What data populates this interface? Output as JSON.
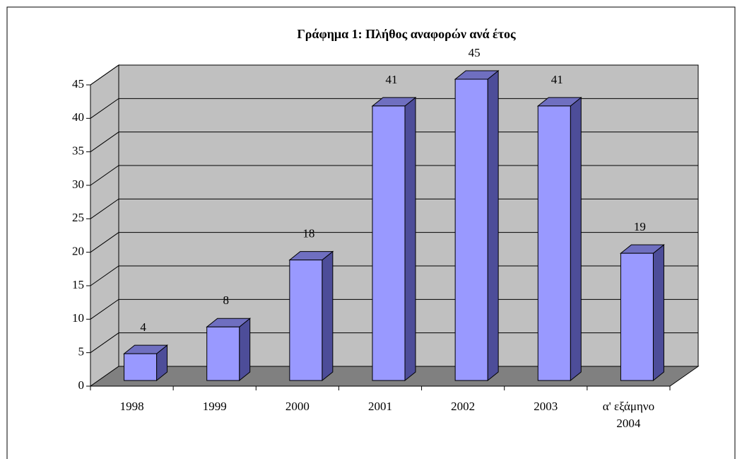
{
  "chart_data": {
    "type": "bar3d",
    "title": "Γράφημα 1: Πλήθος αναφορών ανά έτος",
    "categories": [
      "1998",
      "1999",
      "2000",
      "2001",
      "2002",
      "2003",
      "α' εξάμηνο\n2004"
    ],
    "values": [
      4,
      8,
      18,
      41,
      45,
      41,
      19
    ],
    "color": "#9999ff",
    "ylim": [
      0,
      45
    ],
    "yticks": [
      0,
      5,
      10,
      15,
      20,
      25,
      30,
      35,
      40,
      45
    ],
    "grid": true
  }
}
